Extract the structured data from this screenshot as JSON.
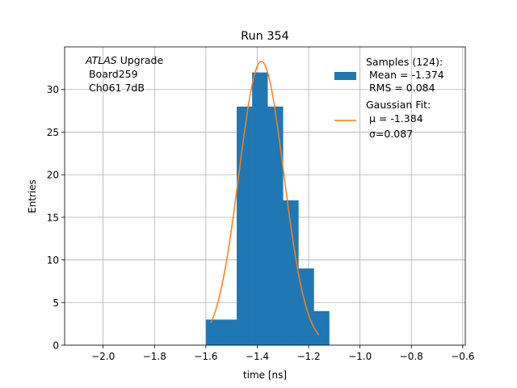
{
  "chart_data": {
    "type": "bar",
    "title": "Run 354",
    "xlabel": "time [ns]",
    "ylabel": "Entries",
    "xlim": [
      -2.15,
      -0.59
    ],
    "ylim": [
      0,
      35.0
    ],
    "grid": true,
    "x_ticks": [
      -2.0,
      -1.8,
      -1.6,
      -1.4,
      -1.2,
      -1.0,
      -0.8,
      -0.6
    ],
    "x_tick_labels": [
      "−2.0",
      "−1.8",
      "−1.6",
      "−1.4",
      "−1.2",
      "−1.0",
      "−0.8",
      "−0.6"
    ],
    "y_ticks": [
      0,
      5,
      10,
      15,
      20,
      25,
      30
    ],
    "y_tick_labels": [
      "0",
      "5",
      "10",
      "15",
      "20",
      "25",
      "30"
    ],
    "annotation": {
      "italic": "ATLAS",
      "line1_rest": " Upgrade",
      "line2": " Board259",
      "line3": " Ch061 7dB"
    },
    "series": [
      {
        "name": "Samples (124):",
        "kind": "histogram",
        "color": "#1f77b4",
        "bin_edges": [
          -1.6,
          -1.54,
          -1.48,
          -1.42,
          -1.36,
          -1.3,
          -1.24,
          -1.18,
          -1.12
        ],
        "counts": [
          3,
          3,
          28,
          32,
          28,
          17,
          9,
          4
        ]
      },
      {
        "name": "Gaussian Fit:",
        "kind": "curve",
        "color": "#ff7f0e",
        "amplitude": 33.3,
        "mu": -1.384,
        "sigma": 0.087,
        "x_range": [
          -1.58,
          -1.16
        ]
      }
    ],
    "legend": {
      "placement": "top-right",
      "entries": [
        {
          "lines": [
            "Samples (124):",
            " Mean = -1.374",
            " RMS = 0.084"
          ],
          "color": "#1f77b4",
          "marker": "patch"
        },
        {
          "lines": [
            "Gaussian Fit:",
            " μ = -1.384",
            " σ=0.087"
          ],
          "color": "#ff7f0e",
          "marker": "line"
        }
      ]
    }
  }
}
